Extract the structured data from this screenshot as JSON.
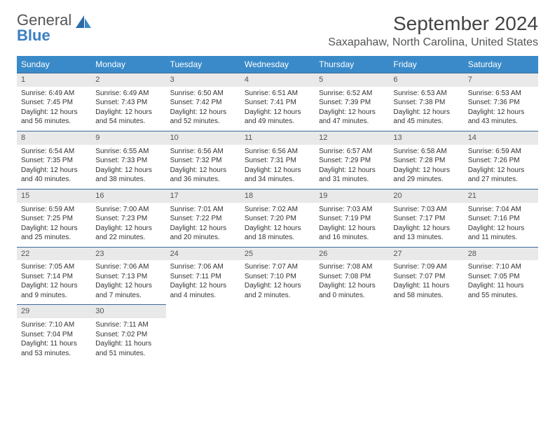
{
  "logo": {
    "text1": "General",
    "text2": "Blue"
  },
  "title": "September 2024",
  "subtitle": "Saxapahaw, North Carolina, United States",
  "colors": {
    "header_bg": "#3a8ac9",
    "header_fg": "#ffffff",
    "row_border": "#3a6a99",
    "daynum_bg": "#e9e9e9",
    "logo_blue": "#3a7fc4",
    "text": "#333333",
    "title": "#444444"
  },
  "weekdays": [
    "Sunday",
    "Monday",
    "Tuesday",
    "Wednesday",
    "Thursday",
    "Friday",
    "Saturday"
  ],
  "days": [
    {
      "n": "1",
      "sr": "6:49 AM",
      "ss": "7:45 PM",
      "dl": "12 hours and 56 minutes."
    },
    {
      "n": "2",
      "sr": "6:49 AM",
      "ss": "7:43 PM",
      "dl": "12 hours and 54 minutes."
    },
    {
      "n": "3",
      "sr": "6:50 AM",
      "ss": "7:42 PM",
      "dl": "12 hours and 52 minutes."
    },
    {
      "n": "4",
      "sr": "6:51 AM",
      "ss": "7:41 PM",
      "dl": "12 hours and 49 minutes."
    },
    {
      "n": "5",
      "sr": "6:52 AM",
      "ss": "7:39 PM",
      "dl": "12 hours and 47 minutes."
    },
    {
      "n": "6",
      "sr": "6:53 AM",
      "ss": "7:38 PM",
      "dl": "12 hours and 45 minutes."
    },
    {
      "n": "7",
      "sr": "6:53 AM",
      "ss": "7:36 PM",
      "dl": "12 hours and 43 minutes."
    },
    {
      "n": "8",
      "sr": "6:54 AM",
      "ss": "7:35 PM",
      "dl": "12 hours and 40 minutes."
    },
    {
      "n": "9",
      "sr": "6:55 AM",
      "ss": "7:33 PM",
      "dl": "12 hours and 38 minutes."
    },
    {
      "n": "10",
      "sr": "6:56 AM",
      "ss": "7:32 PM",
      "dl": "12 hours and 36 minutes."
    },
    {
      "n": "11",
      "sr": "6:56 AM",
      "ss": "7:31 PM",
      "dl": "12 hours and 34 minutes."
    },
    {
      "n": "12",
      "sr": "6:57 AM",
      "ss": "7:29 PM",
      "dl": "12 hours and 31 minutes."
    },
    {
      "n": "13",
      "sr": "6:58 AM",
      "ss": "7:28 PM",
      "dl": "12 hours and 29 minutes."
    },
    {
      "n": "14",
      "sr": "6:59 AM",
      "ss": "7:26 PM",
      "dl": "12 hours and 27 minutes."
    },
    {
      "n": "15",
      "sr": "6:59 AM",
      "ss": "7:25 PM",
      "dl": "12 hours and 25 minutes."
    },
    {
      "n": "16",
      "sr": "7:00 AM",
      "ss": "7:23 PM",
      "dl": "12 hours and 22 minutes."
    },
    {
      "n": "17",
      "sr": "7:01 AM",
      "ss": "7:22 PM",
      "dl": "12 hours and 20 minutes."
    },
    {
      "n": "18",
      "sr": "7:02 AM",
      "ss": "7:20 PM",
      "dl": "12 hours and 18 minutes."
    },
    {
      "n": "19",
      "sr": "7:03 AM",
      "ss": "7:19 PM",
      "dl": "12 hours and 16 minutes."
    },
    {
      "n": "20",
      "sr": "7:03 AM",
      "ss": "7:17 PM",
      "dl": "12 hours and 13 minutes."
    },
    {
      "n": "21",
      "sr": "7:04 AM",
      "ss": "7:16 PM",
      "dl": "12 hours and 11 minutes."
    },
    {
      "n": "22",
      "sr": "7:05 AM",
      "ss": "7:14 PM",
      "dl": "12 hours and 9 minutes."
    },
    {
      "n": "23",
      "sr": "7:06 AM",
      "ss": "7:13 PM",
      "dl": "12 hours and 7 minutes."
    },
    {
      "n": "24",
      "sr": "7:06 AM",
      "ss": "7:11 PM",
      "dl": "12 hours and 4 minutes."
    },
    {
      "n": "25",
      "sr": "7:07 AM",
      "ss": "7:10 PM",
      "dl": "12 hours and 2 minutes."
    },
    {
      "n": "26",
      "sr": "7:08 AM",
      "ss": "7:08 PM",
      "dl": "12 hours and 0 minutes."
    },
    {
      "n": "27",
      "sr": "7:09 AM",
      "ss": "7:07 PM",
      "dl": "11 hours and 58 minutes."
    },
    {
      "n": "28",
      "sr": "7:10 AM",
      "ss": "7:05 PM",
      "dl": "11 hours and 55 minutes."
    },
    {
      "n": "29",
      "sr": "7:10 AM",
      "ss": "7:04 PM",
      "dl": "11 hours and 53 minutes."
    },
    {
      "n": "30",
      "sr": "7:11 AM",
      "ss": "7:02 PM",
      "dl": "11 hours and 51 minutes."
    }
  ],
  "labels": {
    "sunrise": "Sunrise:",
    "sunset": "Sunset:",
    "daylight": "Daylight:"
  }
}
